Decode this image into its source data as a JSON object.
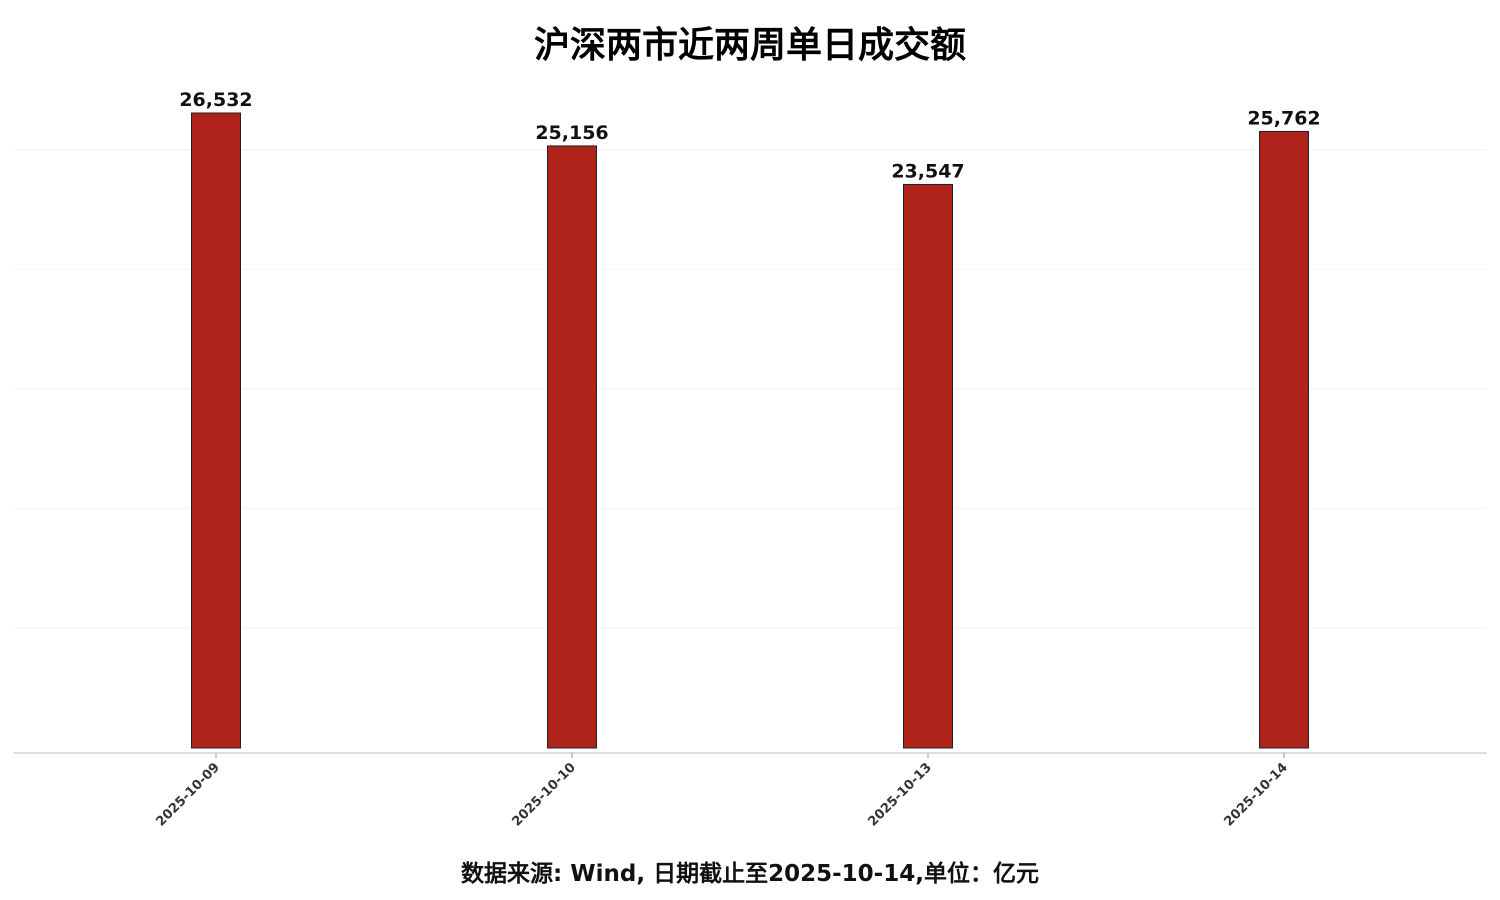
{
  "chart_data": {
    "type": "bar",
    "title": "沪深两市近两周单日成交额",
    "categories": [
      "2025-10-09",
      "2025-10-10",
      "2025-10-13",
      "2025-10-14"
    ],
    "values": [
      26532,
      25156,
      23547,
      25762
    ],
    "data_labels": [
      "26,532",
      "25,156",
      "23,547",
      "25,762"
    ],
    "xlabel": "",
    "ylabel": "",
    "ylim": [
      0,
      27900
    ],
    "y_gridlines": [
      5000,
      10000,
      15000,
      20000,
      25000
    ],
    "grid": true,
    "bar_color": "#B0231A",
    "footnote": "数据来源: Wind, 日期截止至2025-10-14,单位：亿元"
  }
}
